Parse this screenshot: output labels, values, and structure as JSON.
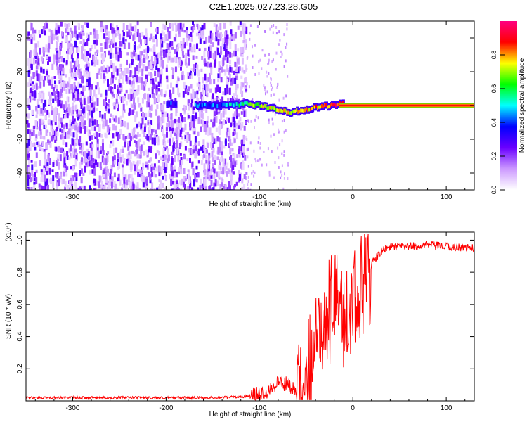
{
  "title": "C2E1.2025.027.23.28.G05",
  "chart_data": [
    {
      "type": "heatmap",
      "xlabel": "Height of straight line (km)",
      "ylabel": "Frequency (Hz)",
      "xlim": [
        -350,
        130
      ],
      "ylim": [
        -50,
        50
      ],
      "x_ticks": [
        -300,
        -200,
        -100,
        0,
        100
      ],
      "y_ticks": [
        -40,
        -20,
        0,
        20,
        40
      ],
      "colorbar": {
        "label": "Normalized spectral amplitude",
        "range": [
          0,
          1
        ],
        "ticks": [
          "0.0",
          "0.2",
          "0.4",
          "0.6",
          "0.8"
        ],
        "colors": [
          "#ffffff",
          "#cc99ff",
          "#6a00ff",
          "#0000ff",
          "#00ffff",
          "#00ff00",
          "#ffff00",
          "#ff0000",
          "#ff0080"
        ]
      },
      "features": {
        "noise_region_x": [
          -350,
          -115
        ],
        "sparse_region_x": [
          -115,
          -70
        ],
        "carrier_line_x": [
          -15,
          130
        ],
        "carrier_frequency": 0,
        "signal_track": [
          {
            "x": -200,
            "y": 1,
            "amp": 0.35
          },
          {
            "x": -165,
            "y": 0,
            "amp": 0.4
          },
          {
            "x": -140,
            "y": 0,
            "amp": 0.4
          },
          {
            "x": -115,
            "y": 1,
            "amp": 0.6
          },
          {
            "x": -100,
            "y": 0,
            "amp": 0.7
          },
          {
            "x": -85,
            "y": -2,
            "amp": 0.7
          },
          {
            "x": -70,
            "y": -4,
            "amp": 0.75
          },
          {
            "x": -55,
            "y": -3,
            "amp": 0.75
          },
          {
            "x": -40,
            "y": -1,
            "amp": 0.8
          },
          {
            "x": -25,
            "y": 0,
            "amp": 0.85
          },
          {
            "x": -10,
            "y": 1,
            "amp": 0.9
          }
        ]
      }
    },
    {
      "type": "line",
      "xlabel": "Height of straight line (km)",
      "ylabel": "SNR (10 * v/v)",
      "scale_label": "(x10⁴)",
      "xlim": [
        -350,
        130
      ],
      "ylim": [
        0,
        1.05
      ],
      "x_ticks": [
        -300,
        -200,
        -100,
        0,
        100
      ],
      "y_ticks": [
        0.2,
        0.4,
        0.6,
        0.8,
        1.0
      ],
      "y_tick_labels": [
        "0.2",
        "0.4",
        "0.6",
        "0.8",
        "1.0"
      ],
      "color": "#ff0000",
      "series": [
        {
          "x": [
            -350,
            -300,
            -250,
            -200,
            -150,
            -120,
            -100,
            -90,
            -80,
            -70,
            -60,
            -50,
            -40,
            -30,
            -20,
            -10,
            0,
            10,
            20,
            30,
            40,
            60,
            80,
            100,
            130
          ],
          "values": [
            0.02,
            0.02,
            0.02,
            0.02,
            0.02,
            0.025,
            0.04,
            0.07,
            0.12,
            0.1,
            0.08,
            0.25,
            0.45,
            0.6,
            0.65,
            0.6,
            0.65,
            0.78,
            0.85,
            0.93,
            0.96,
            0.96,
            0.97,
            0.96,
            0.95
          ]
        }
      ]
    }
  ]
}
